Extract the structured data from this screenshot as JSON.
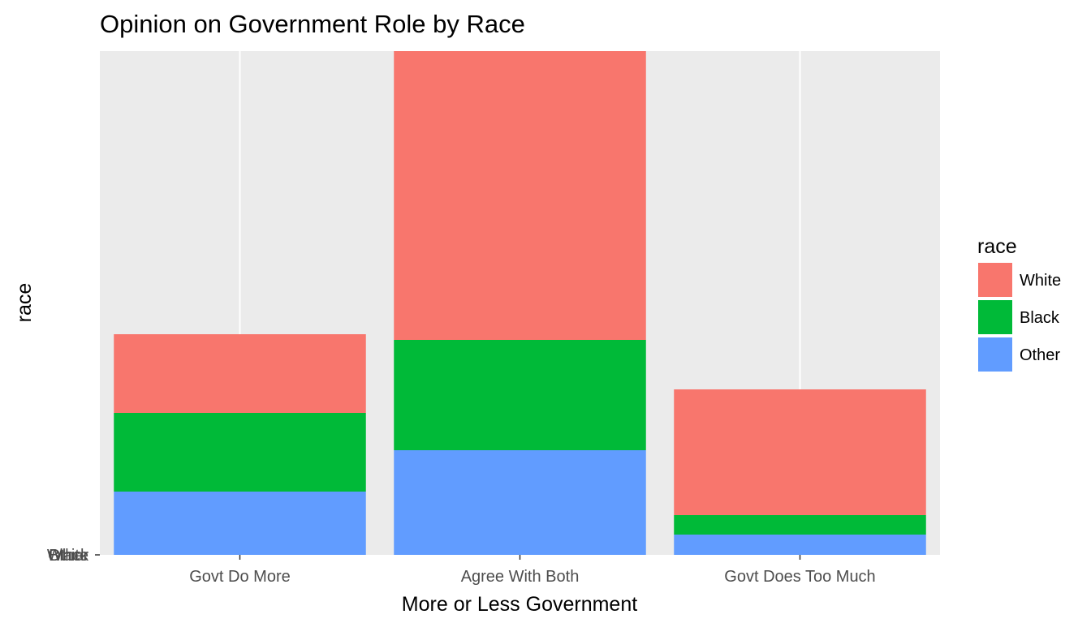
{
  "chart_data": {
    "type": "bar",
    "stacked": true,
    "title": "Opinion on Government Role by Race",
    "xlabel": "More or Less Government",
    "ylabel": "race",
    "categories": [
      "Govt Do More",
      "Agree With Both",
      "Govt Does Too Much"
    ],
    "series": [
      {
        "name": "White",
        "color": "#F8766D",
        "values": [
          97,
          356,
          155
        ]
      },
      {
        "name": "Black",
        "color": "#00BA38",
        "values": [
          97,
          136,
          24
        ]
      },
      {
        "name": "Other",
        "color": "#619CFF",
        "values": [
          78,
          129,
          25
        ]
      }
    ],
    "ylim": [
      0,
      621
    ],
    "y_tick_labels": [
      "White",
      "Black",
      "Other"
    ],
    "legend": {
      "title": "race",
      "position": "right"
    },
    "grid": true,
    "panel_background": "#EBEBEB",
    "grid_color": "#FFFFFF"
  }
}
